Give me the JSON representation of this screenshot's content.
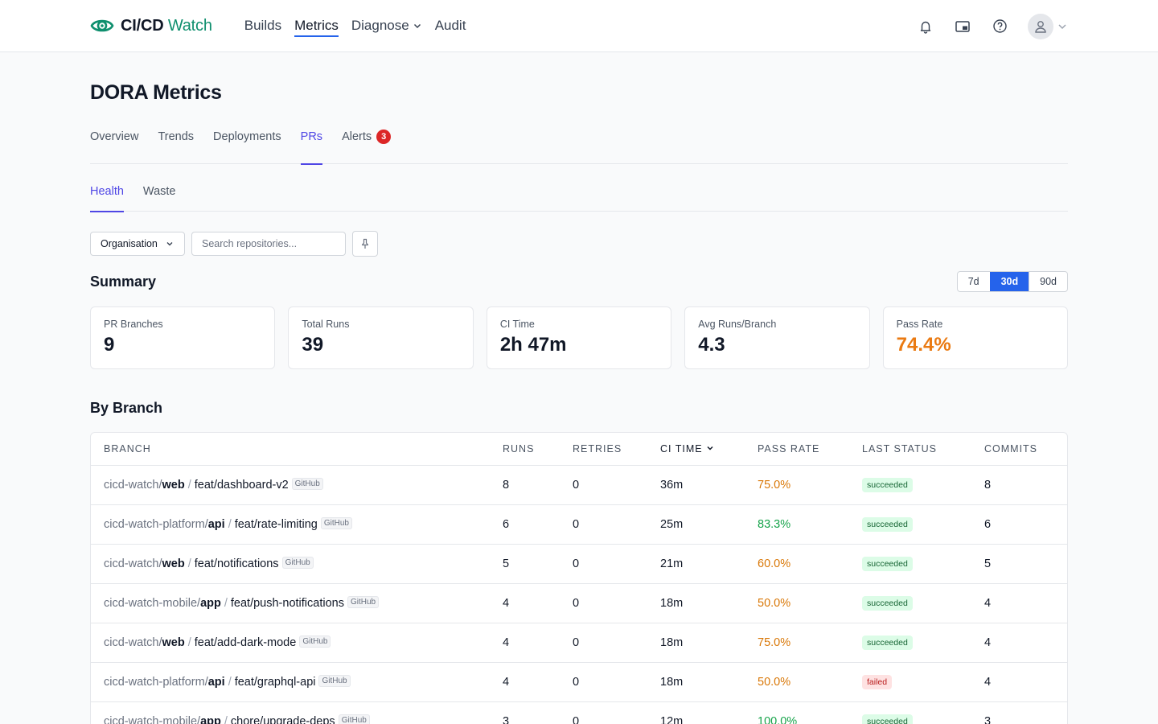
{
  "brand": {
    "strong": "CI/CD",
    "light": "Watch"
  },
  "nav": {
    "builds": "Builds",
    "metrics": "Metrics",
    "diagnose": "Diagnose",
    "audit": "Audit"
  },
  "page": {
    "title": "DORA Metrics"
  },
  "tabs": {
    "overview": "Overview",
    "trends": "Trends",
    "deployments": "Deployments",
    "prs": "PRs",
    "alerts": "Alerts",
    "alerts_count": "3"
  },
  "subtabs": {
    "health": "Health",
    "waste": "Waste"
  },
  "filters": {
    "organisation": "Organisation",
    "search_placeholder": "Search repositories..."
  },
  "summary": {
    "title": "Summary",
    "ranges": [
      "7d",
      "30d",
      "90d"
    ],
    "selected_range": "30d",
    "cards": [
      {
        "label": "PR Branches",
        "value": "9"
      },
      {
        "label": "Total Runs",
        "value": "39"
      },
      {
        "label": "CI Time",
        "value": "2h 47m"
      },
      {
        "label": "Avg Runs/Branch",
        "value": "4.3"
      },
      {
        "label": "Pass Rate",
        "value": "74.4%"
      }
    ]
  },
  "by_branch": {
    "title": "By Branch",
    "columns": {
      "branch": "Branch",
      "runs": "Runs",
      "retries": "Retries",
      "ci_time": "CI Time",
      "pass_rate": "Pass Rate",
      "last_status": "Last Status",
      "commits": "Commits"
    },
    "rows": [
      {
        "owner": "cicd-watch/",
        "repo": "web",
        "branch": "feat/dashboard-v2",
        "provider": "GitHub",
        "runs": "8",
        "retries": "0",
        "ci_time": "36m",
        "pass_rate": "75.0%",
        "status": "succeeded",
        "commits": "8"
      },
      {
        "owner": "cicd-watch-platform/",
        "repo": "api",
        "branch": "feat/rate-limiting",
        "provider": "GitHub",
        "runs": "6",
        "retries": "0",
        "ci_time": "25m",
        "pass_rate": "83.3%",
        "status": "succeeded",
        "commits": "6"
      },
      {
        "owner": "cicd-watch/",
        "repo": "web",
        "branch": "feat/notifications",
        "provider": "GitHub",
        "runs": "5",
        "retries": "0",
        "ci_time": "21m",
        "pass_rate": "60.0%",
        "status": "succeeded",
        "commits": "5"
      },
      {
        "owner": "cicd-watch-mobile/",
        "repo": "app",
        "branch": "feat/push-notifications",
        "provider": "GitHub",
        "runs": "4",
        "retries": "0",
        "ci_time": "18m",
        "pass_rate": "50.0%",
        "status": "succeeded",
        "commits": "4"
      },
      {
        "owner": "cicd-watch/",
        "repo": "web",
        "branch": "feat/add-dark-mode",
        "provider": "GitHub",
        "runs": "4",
        "retries": "0",
        "ci_time": "18m",
        "pass_rate": "75.0%",
        "status": "succeeded",
        "commits": "4"
      },
      {
        "owner": "cicd-watch-platform/",
        "repo": "api",
        "branch": "feat/graphql-api",
        "provider": "GitHub",
        "runs": "4",
        "retries": "0",
        "ci_time": "18m",
        "pass_rate": "50.0%",
        "status": "failed",
        "commits": "4"
      },
      {
        "owner": "cicd-watch-mobile/",
        "repo": "app",
        "branch": "chore/upgrade-deps",
        "provider": "GitHub",
        "runs": "3",
        "retries": "0",
        "ci_time": "12m",
        "pass_rate": "100.0%",
        "status": "succeeded",
        "commits": "3"
      }
    ]
  },
  "colors": {
    "brand": "#0f8f6e",
    "accent": "#2563eb",
    "tab_active": "#4f46e5",
    "warn": "#ea7a12",
    "ok": "#16a34a",
    "badge": "#dc2626"
  }
}
